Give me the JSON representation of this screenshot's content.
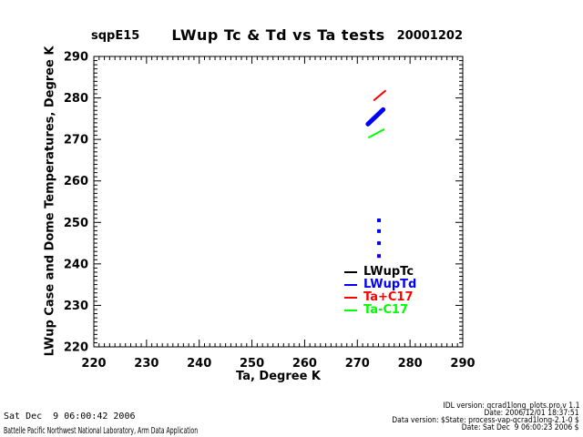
{
  "chart_data": {
    "type": "scatter",
    "site": "sqpE15",
    "title": "LWup Tc & Td vs Ta tests",
    "date": "20001202",
    "xlabel": "Ta, Degree K",
    "ylabel": "LWup Case and Dome Temperatures, Degree K",
    "xlim": [
      220,
      290
    ],
    "ylim": [
      220,
      290
    ],
    "xticks": [
      220,
      230,
      240,
      250,
      260,
      270,
      280,
      290
    ],
    "yticks": [
      220,
      230,
      240,
      250,
      260,
      270,
      280,
      290
    ],
    "minor_step": 1,
    "grid": false,
    "legend_position": "right-center",
    "series": [
      {
        "name": "LWupTc",
        "color": "#000000",
        "type": "line",
        "width": 3,
        "points": [
          [
            272.0,
            273.5
          ],
          [
            274.9,
            277.0
          ]
        ]
      },
      {
        "name": "LWupTd",
        "color": "#0000ff",
        "type": "line",
        "width": 5,
        "points": [
          [
            272.0,
            273.7
          ],
          [
            274.9,
            277.2
          ]
        ]
      },
      {
        "name": "LWupTd-outliers",
        "color": "#0000ff",
        "type": "squares",
        "size": 4,
        "points": [
          [
            274.1,
            250.5
          ],
          [
            274.1,
            247.9
          ],
          [
            274.1,
            245.0
          ],
          [
            274.1,
            241.9
          ]
        ]
      },
      {
        "name": "Ta+C17",
        "color": "#ff0000",
        "type": "line",
        "width": 2,
        "points": [
          [
            273.2,
            279.5
          ],
          [
            275.3,
            281.7
          ]
        ]
      },
      {
        "name": "Ta-C17",
        "color": "#00ff00",
        "type": "line",
        "width": 2,
        "points": [
          [
            272.2,
            270.5
          ],
          [
            275.0,
            272.4
          ]
        ]
      }
    ],
    "legend": [
      {
        "label": "LWupTc",
        "color": "#000000"
      },
      {
        "label": "LWupTd",
        "color": "#0000ff"
      },
      {
        "label": "Ta+C17",
        "color": "#ff0000"
      },
      {
        "label": "Ta-C17",
        "color": "#00ff00"
      }
    ]
  },
  "footer": {
    "left_lines": [
      "Sat Dec  9 06:00:42 2006",
      "Battelle Pacific Northwest National Laboratory, Arm Data Application"
    ],
    "right_lines": [
      "IDL version: qcrad1long_plots.pro,v 1.1",
      "Date: 2006/12/01 18:37:51",
      "Data version: $State: process-vap-qcrad1long-2.1-0 $",
      "Date: Sat Dec  9 06:00:23 2006 $"
    ]
  }
}
